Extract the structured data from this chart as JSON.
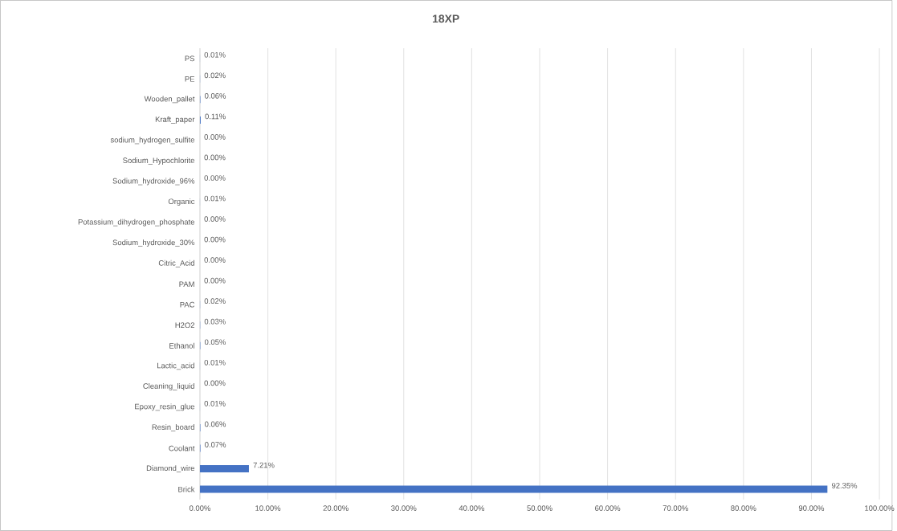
{
  "chart_data": {
    "type": "bar",
    "orientation": "horizontal",
    "title": "18XP",
    "categories": [
      "PS",
      "PE",
      "Wooden_pallet",
      "Kraft_paper",
      "sodium_hydrogen_sulfite",
      "Sodium_Hypochlorite",
      "Sodium_hydroxide_96%",
      "Organic",
      "Potassium_dihydrogen_phosphate",
      "Sodium_hydroxide_30%",
      "Citric_Acid",
      "PAM",
      "PAC",
      "H2O2",
      "Ethanol",
      "Lactic_acid",
      "Cleaning_liquid",
      "Epoxy_resin_glue",
      "Resin_board",
      "Coolant",
      "Diamond_wire",
      "Brick"
    ],
    "values": [
      0.01,
      0.02,
      0.06,
      0.11,
      0.0,
      0.0,
      0.0,
      0.01,
      0.0,
      0.0,
      0.0,
      0.0,
      0.02,
      0.03,
      0.05,
      0.01,
      0.0,
      0.01,
      0.06,
      0.07,
      7.21,
      92.35
    ],
    "value_labels": [
      "0.01%",
      "0.02%",
      "0.06%",
      "0.11%",
      "0.00%",
      "0.00%",
      "0.00%",
      "0.01%",
      "0.00%",
      "0.00%",
      "0.00%",
      "0.00%",
      "0.02%",
      "0.03%",
      "0.05%",
      "0.01%",
      "0.00%",
      "0.01%",
      "0.06%",
      "0.07%",
      "7.21%",
      "92.35%"
    ],
    "color": "#4472c4",
    "xlim": [
      0,
      100
    ],
    "xticks": [
      {
        "value": 0,
        "label": "0.00%"
      },
      {
        "value": 10,
        "label": "10.00%"
      },
      {
        "value": 20,
        "label": "20.00%"
      },
      {
        "value": 30,
        "label": "30.00%"
      },
      {
        "value": 40,
        "label": "40.00%"
      },
      {
        "value": 50,
        "label": "50.00%"
      },
      {
        "value": 60,
        "label": "60.00%"
      },
      {
        "value": 70,
        "label": "70.00%"
      },
      {
        "value": 80,
        "label": "80.00%"
      },
      {
        "value": 90,
        "label": "90.00%"
      },
      {
        "value": 100,
        "label": "100.00%"
      }
    ],
    "grid": "x"
  }
}
